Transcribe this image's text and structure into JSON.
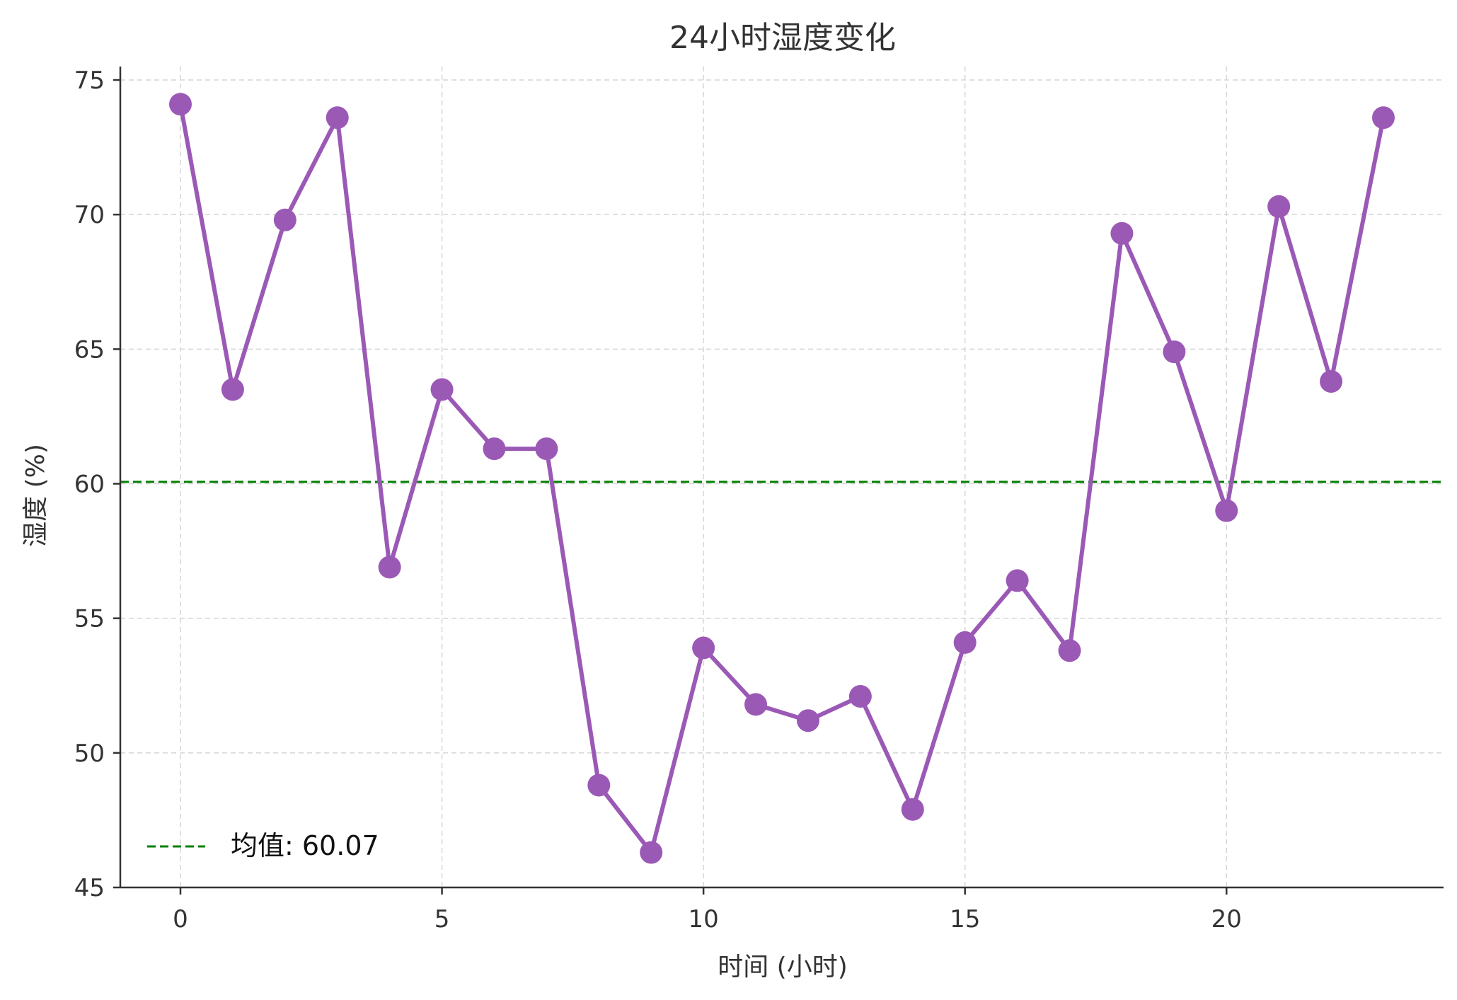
{
  "chart_data": {
    "type": "line",
    "title": "24小时湿度变化",
    "xlabel": "时间 (小时)",
    "ylabel": "湿度 (%)",
    "xlim": [
      -1.15,
      24.15
    ],
    "ylim": [
      45,
      75.5
    ],
    "xticks": [
      0,
      5,
      10,
      15,
      20
    ],
    "yticks": [
      45,
      50,
      55,
      60,
      65,
      70,
      75
    ],
    "grid": true,
    "legend": {
      "position": "bottom-left"
    },
    "series": [
      {
        "color": "#9b59b6",
        "x": [
          0,
          1,
          2,
          3,
          4,
          5,
          6,
          7,
          8,
          9,
          10,
          11,
          12,
          13,
          14,
          15,
          16,
          17,
          18,
          19,
          20,
          21,
          22,
          23
        ],
        "values": [
          74.1,
          63.5,
          69.8,
          73.6,
          56.9,
          63.5,
          61.3,
          61.3,
          48.8,
          46.3,
          53.9,
          51.8,
          51.2,
          52.1,
          47.9,
          54.1,
          56.4,
          53.8,
          69.3,
          64.9,
          59.0,
          70.3,
          63.8,
          73.6
        ]
      }
    ],
    "reference_lines": [
      {
        "name": "均值: 60.07",
        "value": 60.07,
        "color": "#008000",
        "style": "dashed"
      }
    ]
  }
}
